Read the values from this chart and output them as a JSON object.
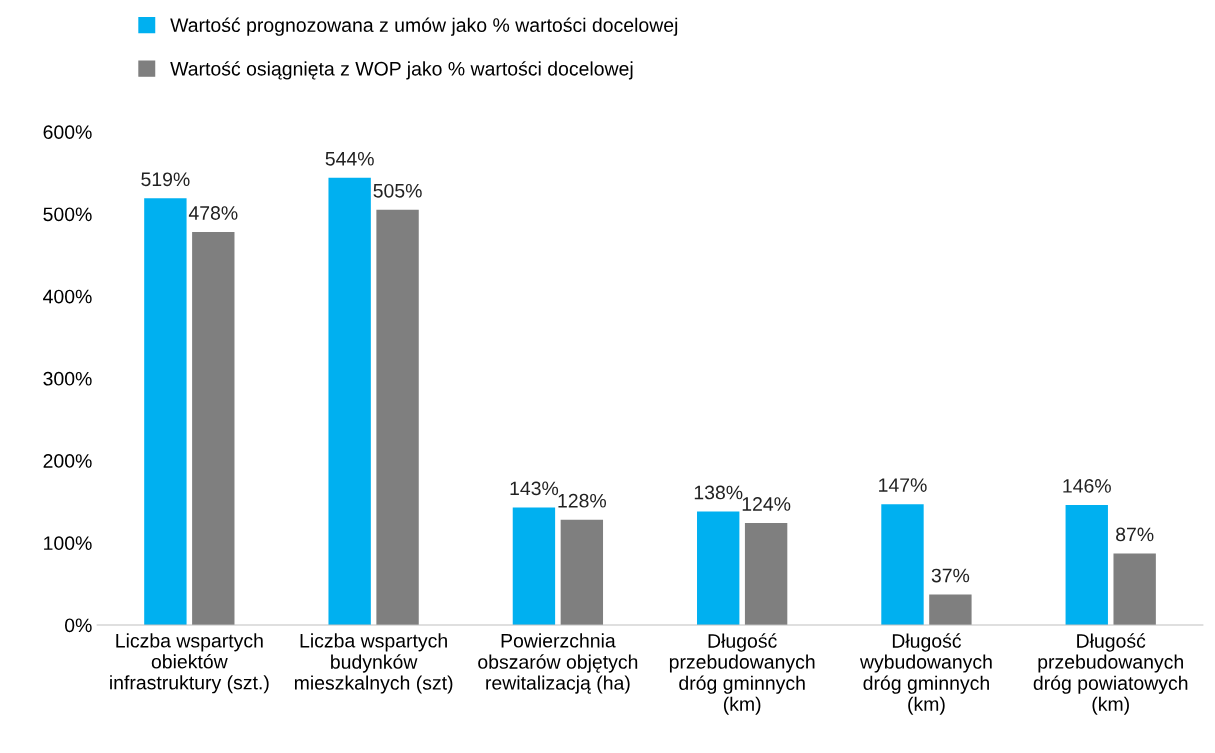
{
  "chart_data": {
    "type": "bar",
    "categories": [
      "Liczba wspartych\nobiektów\ninfrastruktury (szt.)",
      "Liczba wspartych\nbudynków\nmieszkalnych (szt)",
      "Powierzchnia\nobszarów objętych\nrewitalizacją (ha)",
      "Długość\nprzebudowanych\ndróg gminnych\n(km)",
      "Długość\nwybudowanych\ndróg gminnych\n(km)",
      "Długość\nprzebudowanych\ndróg powiatowych\n(km)"
    ],
    "series": [
      {
        "name": "Wartość prognozowana z umów jako % wartości docelowej",
        "color": "#00b0f0",
        "values": [
          519,
          544,
          143,
          138,
          147,
          146
        ]
      },
      {
        "name": "Wartość osiągnięta z WOP jako % wartości docelowej",
        "color": "#7f7f7f",
        "values": [
          478,
          505,
          128,
          124,
          37,
          87
        ]
      }
    ],
    "value_labels": [
      [
        "519%",
        "544%",
        "143%",
        "138%",
        "147%",
        "146%"
      ],
      [
        "478%",
        "505%",
        "128%",
        "124%",
        "37%",
        "87%"
      ]
    ],
    "ylim": [
      0,
      600
    ],
    "yticks": [
      {
        "value": 0,
        "label": "0%"
      },
      {
        "value": 100,
        "label": "100%"
      },
      {
        "value": 200,
        "label": "200%"
      },
      {
        "value": 300,
        "label": "300%"
      },
      {
        "value": 400,
        "label": "400%"
      },
      {
        "value": 500,
        "label": "500%"
      },
      {
        "value": 600,
        "label": "600%"
      }
    ],
    "grid": false,
    "legend": "top"
  }
}
